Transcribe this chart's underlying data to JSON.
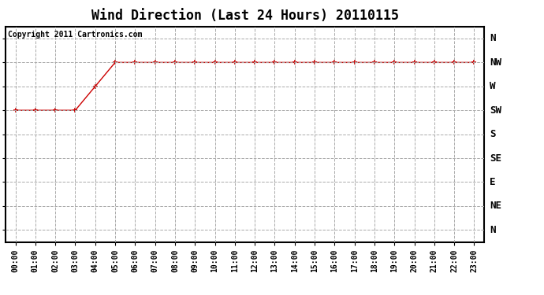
{
  "title": "Wind Direction (Last 24 Hours) 20110115",
  "copyright_text": "Copyright 2011 Cartronics.com",
  "background_color": "#ffffff",
  "plot_bg_color": "#ffffff",
  "line_color": "#cc0000",
  "marker": "+",
  "marker_size": 5,
  "marker_color": "#cc0000",
  "grid_color": "#aaaaaa",
  "grid_linestyle": "--",
  "x_labels": [
    "00:00",
    "01:00",
    "02:00",
    "03:00",
    "04:00",
    "05:00",
    "06:00",
    "07:00",
    "08:00",
    "09:00",
    "10:00",
    "11:00",
    "12:00",
    "13:00",
    "14:00",
    "15:00",
    "16:00",
    "17:00",
    "18:00",
    "19:00",
    "20:00",
    "21:00",
    "22:00",
    "23:00"
  ],
  "y_labels": [
    "N",
    "NW",
    "W",
    "SW",
    "S",
    "SE",
    "E",
    "NE",
    "N"
  ],
  "y_values": [
    8,
    7,
    6,
    5,
    4,
    3,
    2,
    1,
    0
  ],
  "wind_data": [
    5,
    5,
    5,
    5,
    6,
    7,
    7,
    7,
    7,
    7,
    7,
    7,
    7,
    7,
    7,
    7,
    7,
    7,
    7,
    7,
    7,
    7,
    7,
    7
  ],
  "ylim": [
    -0.5,
    8.5
  ],
  "xlim": [
    -0.5,
    23.5
  ],
  "title_fontsize": 12,
  "copyright_fontsize": 7,
  "tick_fontsize": 7,
  "ytick_fontsize": 9
}
